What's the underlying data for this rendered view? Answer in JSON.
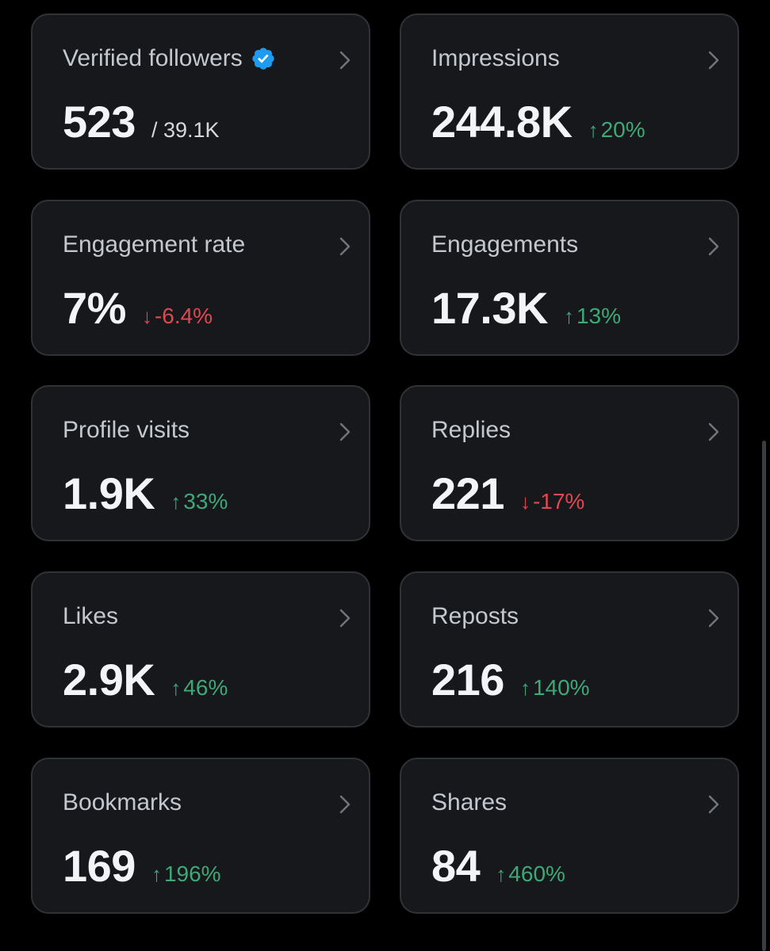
{
  "colors": {
    "background": "#000000",
    "card": "#16181c",
    "border": "#2f3336",
    "positive": "#3fa876",
    "negative": "#e0484f",
    "verified": "#1d9bf0"
  },
  "cards": [
    {
      "title": "Verified followers",
      "value": "523",
      "suffix": "/ 39.1K",
      "verified_icon": "verified-badge-icon"
    },
    {
      "title": "Impressions",
      "value": "244.8K",
      "delta": "20%",
      "direction": "up"
    },
    {
      "title": "Engagement rate",
      "value": "7%",
      "delta": "-6.4%",
      "direction": "down"
    },
    {
      "title": "Engagements",
      "value": "17.3K",
      "delta": "13%",
      "direction": "up"
    },
    {
      "title": "Profile visits",
      "value": "1.9K",
      "delta": "33%",
      "direction": "up"
    },
    {
      "title": "Replies",
      "value": "221",
      "delta": "-17%",
      "direction": "down"
    },
    {
      "title": "Likes",
      "value": "2.9K",
      "delta": "46%",
      "direction": "up"
    },
    {
      "title": "Reposts",
      "value": "216",
      "delta": "140%",
      "direction": "up"
    },
    {
      "title": "Bookmarks",
      "value": "169",
      "delta": "196%",
      "direction": "up"
    },
    {
      "title": "Shares",
      "value": "84",
      "delta": "460%",
      "direction": "up"
    }
  ]
}
